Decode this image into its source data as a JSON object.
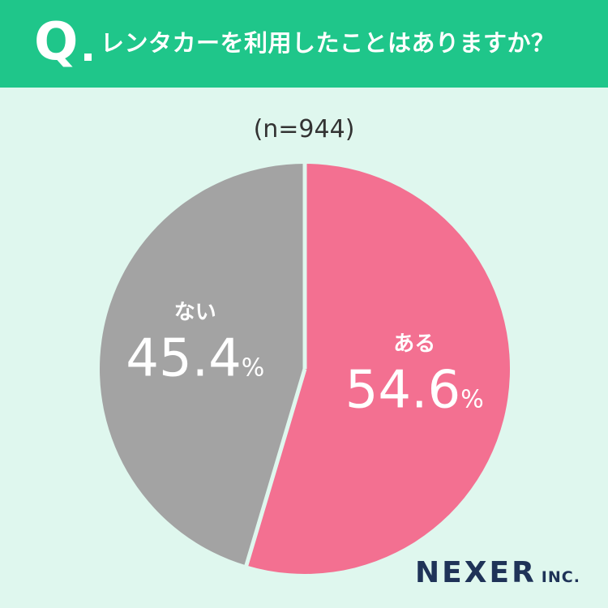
{
  "header": {
    "q_mark": "Q",
    "question": "レンタカーを利用したことはありますか？"
  },
  "sample_size": "(n=944)",
  "chart_data": {
    "type": "pie",
    "title": "レンタカーを利用したことはありますか？",
    "n": 944,
    "unit": "%",
    "slices": [
      {
        "label": "ある",
        "value": 54.6,
        "value_text": "54.6",
        "color": "#f37091"
      },
      {
        "label": "ない",
        "value": 45.4,
        "value_text": "45.4",
        "color": "#a3a3a3"
      }
    ],
    "start": "12 o'clock",
    "direction": "clockwise"
  },
  "logo": {
    "main": "NEXER",
    "sub": "INC."
  },
  "colors": {
    "header": "#1fc68a",
    "background": "#dff7ee",
    "logo": "#1f3358"
  }
}
